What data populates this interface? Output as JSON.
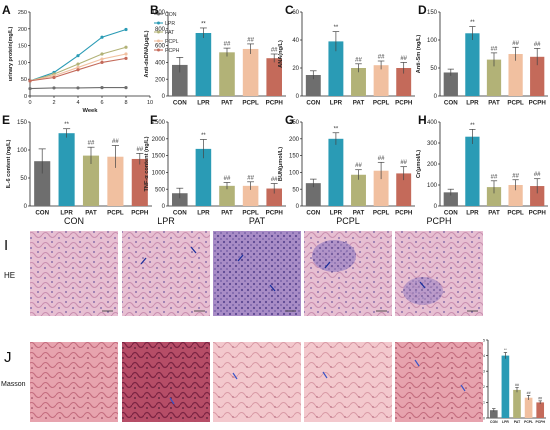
{
  "colors": {
    "CON": "#6e6e6e",
    "LPR": "#2a9bb5",
    "PAT": "#b2b277",
    "PCPL": "#f1c0a0",
    "PCPH": "#c46a5a",
    "sig": "#333333"
  },
  "chart_data": [
    {
      "panel": "A",
      "type": "line",
      "xlabel": "Week",
      "ylabel": "urinary protein(mg/L)",
      "xlim": [
        0,
        10
      ],
      "ylim": [
        0,
        250
      ],
      "x": [
        0,
        2,
        4,
        6,
        8
      ],
      "xticks": [
        0,
        2,
        4,
        6,
        8,
        10
      ],
      "yticks": [
        0,
        50,
        100,
        150,
        200,
        250
      ],
      "legend_position": "top-right",
      "series": [
        {
          "name": "CON",
          "values": [
            22,
            24,
            24,
            25,
            25
          ]
        },
        {
          "name": "LPR",
          "values": [
            45,
            70,
            120,
            175,
            198
          ]
        },
        {
          "name": "PAT",
          "values": [
            45,
            65,
            95,
            125,
            145
          ]
        },
        {
          "name": "PCPL",
          "values": [
            45,
            60,
            85,
            110,
            125
          ]
        },
        {
          "name": "PCPH",
          "values": [
            45,
            55,
            78,
            100,
            112
          ]
        }
      ]
    },
    {
      "panel": "B",
      "type": "bar",
      "ylabel": "Anti-dsDNA(μg/L)",
      "categories": [
        "CON",
        "LPR",
        "PAT",
        "PCPL",
        "PCPH"
      ],
      "values": [
        370,
        750,
        520,
        560,
        450
      ],
      "errors": [
        90,
        60,
        50,
        60,
        50
      ],
      "ylim": [
        0,
        1000
      ],
      "yticks": [
        0,
        200,
        400,
        600,
        800,
        1000
      ],
      "annotations": [
        "",
        "**",
        "##",
        "##",
        "##"
      ]
    },
    {
      "panel": "C",
      "type": "bar",
      "ylabel": "ANA(ng/L)",
      "categories": [
        "CON",
        "LPR",
        "PAT",
        "PCPL",
        "PCPH"
      ],
      "values": [
        15,
        39,
        20,
        22,
        20
      ],
      "errors": [
        3,
        7,
        3,
        3,
        4
      ],
      "ylim": [
        0,
        60
      ],
      "yticks": [
        0,
        20,
        40,
        60
      ],
      "annotations": [
        "",
        "**",
        "##",
        "##",
        "##"
      ]
    },
    {
      "panel": "D",
      "type": "bar",
      "ylabel": "Anti-Sm (ng/L)",
      "categories": [
        "CON",
        "LPR",
        "PAT",
        "PCPL",
        "PCPH"
      ],
      "values": [
        42,
        112,
        65,
        75,
        70
      ],
      "errors": [
        6,
        12,
        12,
        12,
        15
      ],
      "ylim": [
        0,
        150
      ],
      "yticks": [
        0,
        50,
        100,
        150
      ],
      "annotations": [
        "",
        "**",
        "##",
        "##",
        "##"
      ]
    },
    {
      "panel": "E",
      "type": "bar",
      "ylabel": "IL-6 content (ng/L)",
      "categories": [
        "CON",
        "LPR",
        "PAT",
        "PCPL",
        "PCPH"
      ],
      "values": [
        80,
        130,
        90,
        88,
        84
      ],
      "errors": [
        22,
        8,
        15,
        20,
        10
      ],
      "ylim": [
        0,
        150
      ],
      "yticks": [
        0,
        50,
        100,
        150
      ],
      "annotations": [
        "",
        "**",
        "##",
        "##",
        "##"
      ]
    },
    {
      "panel": "F",
      "type": "bar",
      "ylabel": "TNF-α content (ng/L)",
      "categories": [
        "CON",
        "LPR",
        "PAT",
        "PCPL",
        "PCPH"
      ],
      "values": [
        380,
        1700,
        600,
        600,
        520
      ],
      "errors": [
        150,
        280,
        100,
        120,
        150
      ],
      "ylim": [
        0,
        2500
      ],
      "yticks": [
        0,
        500,
        1000,
        1500,
        2000,
        2500
      ],
      "annotations": [
        "",
        "**",
        "##",
        "##",
        "##"
      ]
    },
    {
      "panel": "G",
      "type": "bar",
      "ylabel": "BUN(μmol/L)",
      "categories": [
        "CON",
        "LPR",
        "PAT",
        "PCPL",
        "PCPH"
      ],
      "values": [
        68,
        200,
        93,
        105,
        97
      ],
      "errors": [
        12,
        18,
        15,
        25,
        20
      ],
      "ylim": [
        0,
        250
      ],
      "yticks": [
        0,
        50,
        100,
        150,
        200,
        250
      ],
      "annotations": [
        "",
        "**",
        "##",
        "##",
        "##"
      ]
    },
    {
      "panel": "H",
      "type": "bar",
      "ylabel": "Cr(μmol/L)",
      "categories": [
        "CON",
        "LPR",
        "PAT",
        "PCPL",
        "PCPH"
      ],
      "values": [
        65,
        330,
        90,
        100,
        95
      ],
      "errors": [
        15,
        35,
        30,
        25,
        35
      ],
      "ylim": [
        0,
        400
      ],
      "yticks": [
        0,
        100,
        200,
        300,
        400
      ],
      "annotations": [
        "",
        "**",
        "##",
        "##",
        "##"
      ]
    },
    {
      "panel": "J-inset",
      "type": "bar",
      "ylabel": "Positive Area(%)",
      "categories": [
        "CON",
        "LPR",
        "PAT",
        "PCPL",
        "PCPH"
      ],
      "values": [
        0.5,
        4.0,
        1.8,
        1.3,
        1.0
      ],
      "errors": [
        0.1,
        0.2,
        0.15,
        0.15,
        0.1
      ],
      "ylim": [
        0,
        5
      ],
      "yticks": [
        0,
        1,
        2,
        3,
        4,
        5
      ],
      "annotations": [
        "",
        "**",
        "##",
        "##",
        "##"
      ]
    }
  ],
  "histology": {
    "label_I": "I",
    "label_J": "J",
    "row_he": "HE",
    "row_masson": "Masson",
    "columns": [
      "CON",
      "LPR",
      "PAT",
      "PCPL",
      "PCPH"
    ]
  }
}
